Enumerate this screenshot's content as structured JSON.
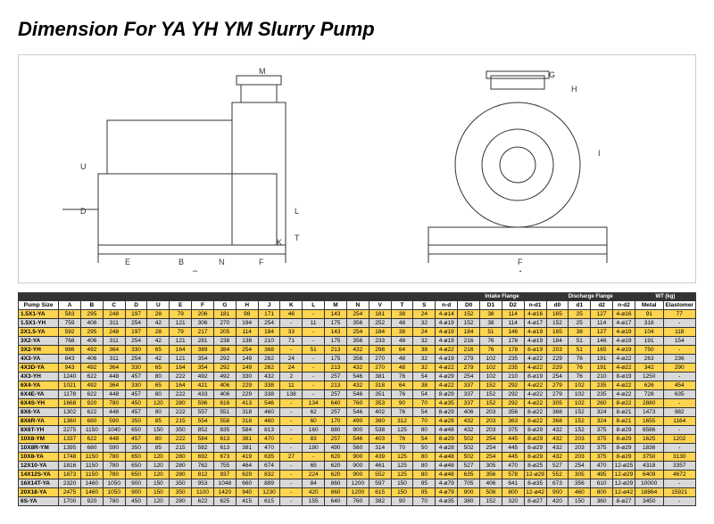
{
  "title": "Dimension For YA YH YM Slurry Pump",
  "diagram_labels": [
    "M",
    "G",
    "H",
    "U",
    "D",
    "I",
    "T",
    "K",
    "L",
    "E",
    "B",
    "N",
    "F",
    "C",
    "A"
  ],
  "columns": [
    "Pump Size",
    "A",
    "B",
    "C",
    "D",
    "U",
    "E",
    "F",
    "G",
    "H",
    "J",
    "K",
    "L",
    "M",
    "N",
    "V",
    "T",
    "S",
    "n-d",
    "D0",
    "D1",
    "D2",
    "n-d1",
    "d0",
    "d1",
    "d2",
    "n-d2",
    "Metal",
    "Elastomer"
  ],
  "group_headers": {
    "intake": "Intake Flange",
    "discharge": "Discharge Flange",
    "wt": "WT (kg)"
  },
  "row_palette": {
    "yellow": "#ffd54f",
    "gray": "#d9d9d9"
  },
  "rows": [
    {
      "c": "yellow",
      "d": [
        "1.5X1-YA",
        "583",
        "295",
        "248",
        "197",
        "28",
        "79",
        "206",
        "181",
        "98",
        "171",
        "46",
        "-",
        "143",
        "254",
        "181",
        "38",
        "24",
        "4-ø14",
        "152",
        "38",
        "114",
        "4-ø16",
        "165",
        "25",
        "127",
        "4-ø16",
        "91",
        "77"
      ]
    },
    {
      "c": "gray",
      "d": [
        "1.5X1-YH",
        "759",
        "406",
        "311",
        "254",
        "42",
        "121",
        "306",
        "270",
        "194",
        "254",
        "-",
        "11",
        "175",
        "356",
        "252",
        "48",
        "32",
        "4-ø19",
        "152",
        "38",
        "114",
        "4-ø17",
        "152",
        "25",
        "114",
        "4-ø17",
        "318",
        "-"
      ]
    },
    {
      "c": "yellow",
      "d": [
        "2X1.5-YA",
        "592",
        "295",
        "248",
        "197",
        "28",
        "79",
        "217",
        "205",
        "114",
        "184",
        "33",
        "-",
        "143",
        "254",
        "184",
        "38",
        "24",
        "4-ø19",
        "184",
        "51",
        "146",
        "4-ø19",
        "165",
        "38",
        "127",
        "4-ø19",
        "104",
        "118"
      ]
    },
    {
      "c": "gray",
      "d": [
        "3X2-YA",
        "768",
        "406",
        "311",
        "254",
        "42",
        "121",
        "281",
        "238",
        "138",
        "210",
        "71",
        "-",
        "175",
        "356",
        "233",
        "48",
        "32",
        "4-ø19",
        "216",
        "76",
        "178",
        "4-ø19",
        "184",
        "51",
        "146",
        "4-ø19",
        "191",
        "154"
      ]
    },
    {
      "c": "yellow",
      "d": [
        "3X2-YH",
        "986",
        "492",
        "364",
        "330",
        "65",
        "164",
        "389",
        "384",
        "254",
        "368",
        "-",
        "51",
        "213",
        "432",
        "298",
        "64",
        "38",
        "4-ø22",
        "216",
        "76",
        "178",
        "8-ø19",
        "203",
        "51",
        "165",
        "4-ø19",
        "750",
        "-"
      ]
    },
    {
      "c": "gray",
      "d": [
        "4X3-YA",
        "843",
        "406",
        "311",
        "254",
        "42",
        "121",
        "354",
        "292",
        "149",
        "262",
        "24",
        "-",
        "175",
        "356",
        "270",
        "48",
        "32",
        "4-ø19",
        "279",
        "102",
        "235",
        "4-ø22",
        "229",
        "76",
        "191",
        "4-ø22",
        "263",
        "236"
      ]
    },
    {
      "c": "yellow",
      "d": [
        "4X3D-YA",
        "943",
        "492",
        "364",
        "330",
        "65",
        "164",
        "354",
        "292",
        "149",
        "262",
        "24",
        "-",
        "213",
        "432",
        "270",
        "48",
        "32",
        "4-ø22",
        "279",
        "102",
        "235",
        "4-ø22",
        "229",
        "76",
        "191",
        "4-ø22",
        "342",
        "290"
      ]
    },
    {
      "c": "gray",
      "d": [
        "4X3-YH",
        "1240",
        "622",
        "448",
        "457",
        "80",
        "222",
        "492",
        "492",
        "330",
        "432",
        "2",
        "-",
        "257",
        "546",
        "381",
        "76",
        "54",
        "4-ø29",
        "254",
        "102",
        "210",
        "8-ø19",
        "254",
        "76",
        "210",
        "8-ø19",
        "1250",
        "-"
      ]
    },
    {
      "c": "yellow",
      "d": [
        "6X4-YA",
        "1021",
        "492",
        "364",
        "330",
        "65",
        "164",
        "421",
        "406",
        "229",
        "338",
        "11",
        "-",
        "213",
        "432",
        "318",
        "64",
        "38",
        "4-ø22",
        "337",
        "152",
        "292",
        "4-ø22",
        "279",
        "102",
        "235",
        "4-ø22",
        "626",
        "454"
      ]
    },
    {
      "c": "gray",
      "d": [
        "6X4E-YA",
        "1178",
        "622",
        "448",
        "457",
        "80",
        "222",
        "433",
        "406",
        "229",
        "338",
        "138",
        "-",
        "257",
        "546",
        "351",
        "76",
        "54",
        "8-ø29",
        "337",
        "152",
        "292",
        "4-ø22",
        "279",
        "102",
        "235",
        "4-ø22",
        "728",
        "635"
      ]
    },
    {
      "c": "yellow",
      "d": [
        "6X4S-YH",
        "1668",
        "920",
        "780",
        "450",
        "120",
        "280",
        "596",
        "616",
        "413",
        "546",
        "-",
        "134",
        "640",
        "760",
        "353",
        "90",
        "70",
        "4-ø35",
        "337",
        "152",
        "292",
        "4-ø22",
        "305",
        "102",
        "260",
        "8-ø22",
        "2880",
        "-"
      ]
    },
    {
      "c": "gray",
      "d": [
        "8X6-YA",
        "1302",
        "622",
        "448",
        "457",
        "80",
        "222",
        "557",
        "551",
        "318",
        "460",
        "-",
        "62",
        "257",
        "546",
        "402",
        "76",
        "54",
        "8-ø29",
        "406",
        "203",
        "356",
        "8-ø22",
        "368",
        "152",
        "324",
        "8-ø21",
        "1473",
        "982"
      ]
    },
    {
      "c": "yellow",
      "d": [
        "8X6R-YA",
        "1360",
        "680",
        "590",
        "350",
        "85",
        "215",
        "554",
        "558",
        "318",
        "460",
        "-",
        "60",
        "170",
        "490",
        "360",
        "312",
        "70",
        "4-ø28",
        "432",
        "203",
        "363",
        "8-ø22",
        "368",
        "152",
        "324",
        "8-ø21",
        "1655",
        "1164"
      ]
    },
    {
      "c": "gray",
      "d": [
        "8X6T-YH",
        "2275",
        "1150",
        "1040",
        "650",
        "150",
        "350",
        "852",
        "835",
        "584",
        "813",
        "-",
        "160",
        "880",
        "900",
        "538",
        "125",
        "80",
        "4-ø48",
        "432",
        "203",
        "375",
        "8-ø29",
        "432",
        "152",
        "375",
        "8-ø29",
        "6586",
        "-"
      ]
    },
    {
      "c": "yellow",
      "d": [
        "10X8-YM",
        "1337",
        "622",
        "448",
        "457",
        "80",
        "222",
        "584",
        "613",
        "381",
        "470",
        "-",
        "83",
        "257",
        "546",
        "403",
        "76",
        "54",
        "8-ø29",
        "502",
        "254",
        "445",
        "8-ø29",
        "432",
        "203",
        "375",
        "8-ø29",
        "1625",
        "1202"
      ]
    },
    {
      "c": "gray",
      "d": [
        "10X8R-YM",
        "1395",
        "680",
        "590",
        "350",
        "85",
        "215",
        "582",
        "613",
        "381",
        "470",
        "-",
        "190",
        "490",
        "560",
        "314",
        "70",
        "50",
        "4-ø28",
        "502",
        "254",
        "445",
        "8-ø29",
        "432",
        "203",
        "375",
        "8-ø29",
        "1836",
        "-"
      ]
    },
    {
      "c": "yellow",
      "d": [
        "10X8-YA",
        "1748",
        "1150",
        "780",
        "650",
        "120",
        "280",
        "692",
        "673",
        "419",
        "635",
        "27",
        "-",
        "620",
        "900",
        "439",
        "125",
        "80",
        "4-ø48",
        "502",
        "254",
        "445",
        "8-ø29",
        "432",
        "203",
        "375",
        "8-ø29",
        "3750",
        "3130"
      ]
    },
    {
      "c": "gray",
      "d": [
        "12X10-YA",
        "1816",
        "1150",
        "780",
        "650",
        "120",
        "280",
        "762",
        "755",
        "464",
        "674",
        "-",
        "65",
        "620",
        "900",
        "461",
        "125",
        "80",
        "4-ø48",
        "527",
        "305",
        "470",
        "8-ø25",
        "527",
        "254",
        "470",
        "12-ø25",
        "4318",
        "3357"
      ]
    },
    {
      "c": "yellow",
      "d": [
        "14X12S-YA",
        "1873",
        "1150",
        "780",
        "650",
        "120",
        "280",
        "812",
        "937",
        "629",
        "832",
        "-",
        "224",
        "620",
        "900",
        "552",
        "125",
        "80",
        "4-ø48",
        "635",
        "356",
        "578",
        "12-ø29",
        "552",
        "305",
        "495",
        "12-ø29",
        "6409",
        "4672"
      ]
    },
    {
      "c": "gray",
      "d": [
        "16X14T-YA",
        "2320",
        "1460",
        "1050",
        "900",
        "150",
        "350",
        "953",
        "1048",
        "660",
        "889",
        "-",
        "84",
        "860",
        "1200",
        "597",
        "150",
        "95",
        "4-ø79",
        "705",
        "406",
        "641",
        "8-ø35",
        "673",
        "356",
        "610",
        "12-ø29",
        "10000",
        "-"
      ]
    },
    {
      "c": "yellow",
      "d": [
        "20X18-YA",
        "2475",
        "1460",
        "1050",
        "900",
        "150",
        "350",
        "1100",
        "1420",
        "940",
        "1230",
        "-",
        "420",
        "860",
        "1200",
        "615",
        "150",
        "95",
        "4-ø79",
        "900",
        "508",
        "800",
        "12-ø42",
        "900",
        "460",
        "800",
        "12-ø42",
        "18864",
        "15921"
      ]
    },
    {
      "c": "gray",
      "d": [
        "6S-YA",
        "1700",
        "920",
        "780",
        "450",
        "120",
        "280",
        "622",
        "625",
        "415",
        "615",
        "-",
        "155",
        "640",
        "760",
        "382",
        "90",
        "70",
        "4-ø35",
        "380",
        "152",
        "320",
        "8-ø27",
        "420",
        "150",
        "360",
        "8-ø27",
        "3450",
        "-"
      ]
    }
  ]
}
